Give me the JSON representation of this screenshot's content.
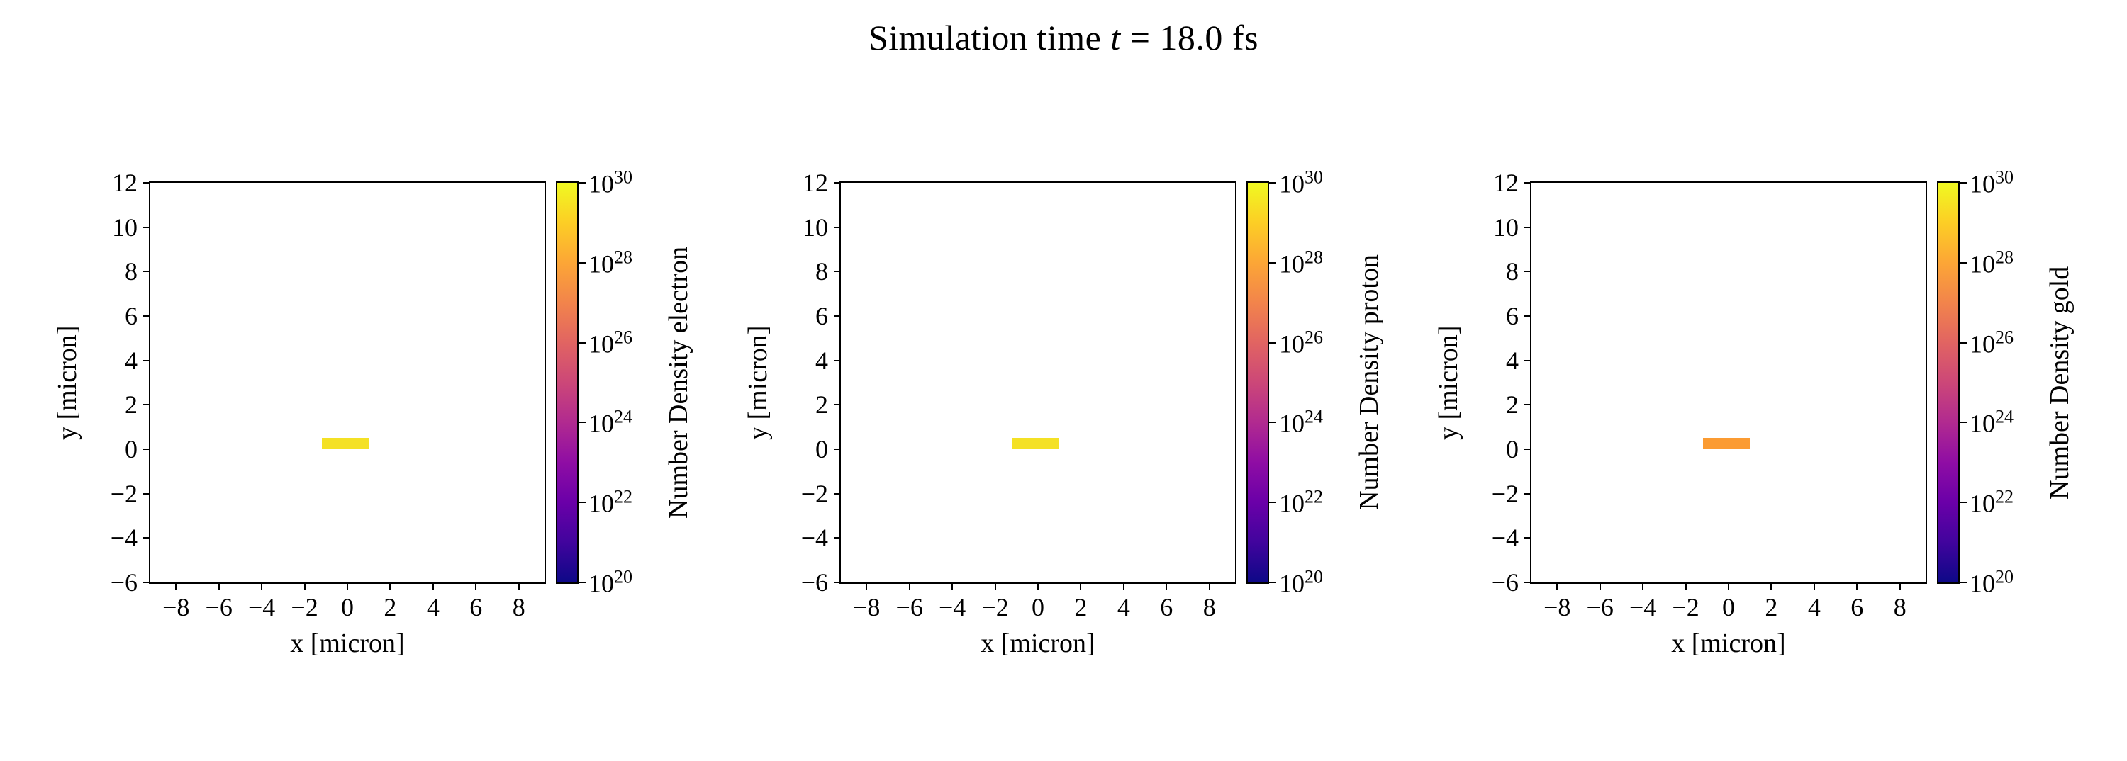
{
  "figure": {
    "title": {
      "prefix": "Simulation time ",
      "variable": "t",
      "suffix": " = 18.0 fs"
    },
    "background_color": "#ffffff",
    "text_color": "#000000"
  },
  "chart_data": [
    {
      "type": "heatmap",
      "species": "electron",
      "title": "",
      "xlabel": "x [micron]",
      "ylabel": "y [micron]",
      "xlim": [
        -9.2,
        9.2
      ],
      "ylim": [
        -6,
        12
      ],
      "xticks": [
        -8,
        -6,
        -4,
        -2,
        0,
        2,
        4,
        6,
        8
      ],
      "yticks": [
        -6,
        -4,
        -2,
        0,
        2,
        4,
        6,
        8,
        10,
        12
      ],
      "grid": false,
      "colorbar": {
        "label": "Number Density electron",
        "scale": "log",
        "tick_exponents": [
          20,
          22,
          24,
          26,
          28,
          30
        ],
        "vmin_exponent": 20,
        "vmax_exponent": 30,
        "colormap": "plasma"
      },
      "features": [
        {
          "name": "target-slab",
          "x_range": [
            -1.2,
            1.0
          ],
          "y_range": [
            0.0,
            0.5
          ],
          "color": "#f4e125",
          "approx_log10_density": 30
        }
      ]
    },
    {
      "type": "heatmap",
      "species": "proton",
      "title": "",
      "xlabel": "x [micron]",
      "ylabel": "y [micron]",
      "xlim": [
        -9.2,
        9.2
      ],
      "ylim": [
        -6,
        12
      ],
      "xticks": [
        -8,
        -6,
        -4,
        -2,
        0,
        2,
        4,
        6,
        8
      ],
      "yticks": [
        -6,
        -4,
        -2,
        0,
        2,
        4,
        6,
        8,
        10,
        12
      ],
      "grid": false,
      "colorbar": {
        "label": "Number Density proton",
        "scale": "log",
        "tick_exponents": [
          20,
          22,
          24,
          26,
          28,
          30
        ],
        "vmin_exponent": 20,
        "vmax_exponent": 30,
        "colormap": "plasma"
      },
      "features": [
        {
          "name": "target-slab",
          "x_range": [
            -1.2,
            1.0
          ],
          "y_range": [
            0.0,
            0.5
          ],
          "color": "#f4e125",
          "approx_log10_density": 30
        }
      ]
    },
    {
      "type": "heatmap",
      "species": "gold",
      "title": "",
      "xlabel": "x [micron]",
      "ylabel": "y [micron]",
      "xlim": [
        -9.2,
        9.2
      ],
      "ylim": [
        -6,
        12
      ],
      "xticks": [
        -8,
        -6,
        -4,
        -2,
        0,
        2,
        4,
        6,
        8
      ],
      "yticks": [
        -6,
        -4,
        -2,
        0,
        2,
        4,
        6,
        8,
        10,
        12
      ],
      "grid": false,
      "colorbar": {
        "label": "Number Density gold",
        "scale": "log",
        "tick_exponents": [
          20,
          22,
          24,
          26,
          28,
          30
        ],
        "vmin_exponent": 20,
        "vmax_exponent": 30,
        "colormap": "plasma"
      },
      "features": [
        {
          "name": "target-slab",
          "x_range": [
            -1.2,
            1.0
          ],
          "y_range": [
            0.0,
            0.5
          ],
          "color": "#fb9b32",
          "approx_log10_density": 28
        }
      ]
    }
  ],
  "style": {
    "plasma_colormap_stops": [
      "#0d0887",
      "#41049d",
      "#6a00a8",
      "#8f0da4",
      "#b12a90",
      "#cc4778",
      "#e16462",
      "#f2844b",
      "#fca636",
      "#fcce25",
      "#f0f921"
    ]
  }
}
